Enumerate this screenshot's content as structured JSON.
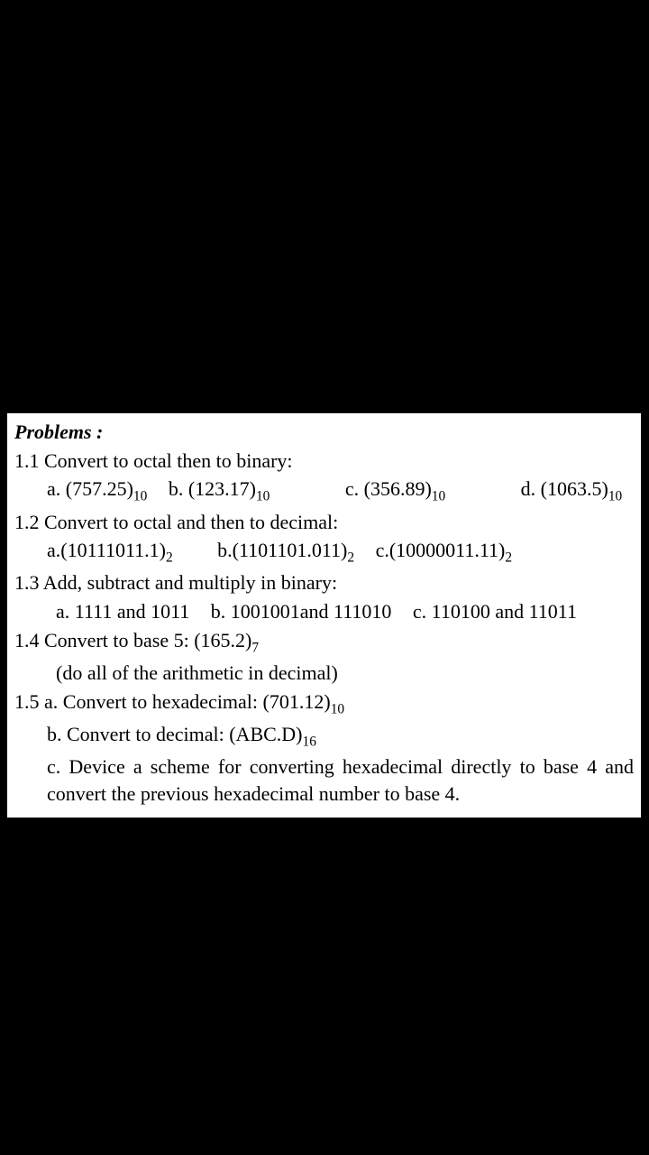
{
  "title": "Problems :",
  "p11": {
    "heading": "1.1 Convert to octal then to binary:",
    "a_label": "a. (757.25)",
    "a_sub": "10",
    "b_label": "b. (123.17)",
    "b_sub": "10",
    "c_label": "c. (356.89)",
    "c_sub": "10",
    "d_label": "d. (1063.5)",
    "d_sub": "10"
  },
  "p12": {
    "heading": "1.2 Convert to octal and then to decimal:",
    "a_label": "a.(10111011.1)",
    "a_sub": "2",
    "b_label": "b.(1101101.011)",
    "b_sub": "2",
    "c_label": "c.(10000011.11)",
    "c_sub": "2"
  },
  "p13": {
    "heading": "1.3 Add, subtract and multiply in binary:",
    "a": "a. 1111 and 1011",
    "b": "b. 1001001and 111010",
    "c": "c. 110100 and 11011"
  },
  "p14": {
    "heading_pre": "1.4 Convert to base 5: (165.2)",
    "heading_sub": "7",
    "note": "(do all of the arithmetic in decimal)"
  },
  "p15": {
    "a_pre": "1.5 a. Convert to hexadecimal: (701.12)",
    "a_sub": "10",
    "b_pre": "b. Convert to decimal: (ABC.D)",
    "b_sub": "16",
    "c": "c. Device a scheme for converting hexadecimal directly to base 4 and convert the previous hexadecimal number to base 4."
  }
}
